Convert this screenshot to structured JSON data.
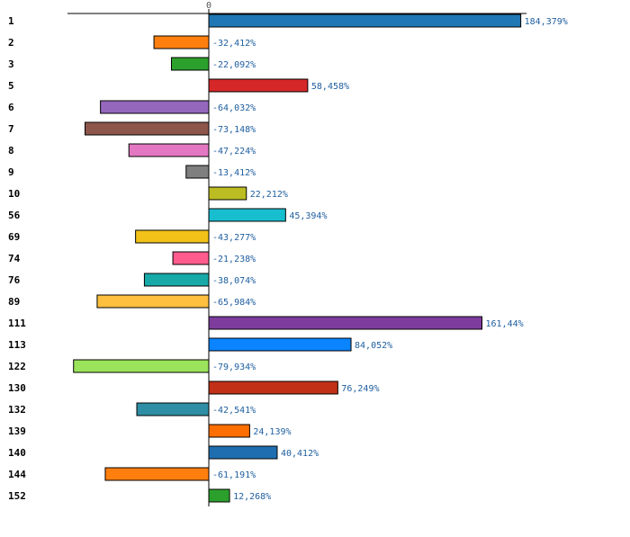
{
  "chart_data": {
    "type": "bar",
    "orientation": "horizontal",
    "title": "",
    "xlabel": "",
    "ylabel": "",
    "zero_tick_label": "0",
    "xlim": [
      -100,
      225
    ],
    "grid": false,
    "legend": "none",
    "categories": [
      "1",
      "2",
      "3",
      "5",
      "6",
      "7",
      "8",
      "9",
      "10",
      "56",
      "69",
      "74",
      "76",
      "89",
      "111",
      "113",
      "122",
      "130",
      "132",
      "139",
      "140",
      "144",
      "152"
    ],
    "values": [
      184.379,
      -32.412,
      -22.092,
      58.458,
      -64.032,
      -73.148,
      -47.224,
      -13.412,
      22.212,
      45.394,
      -43.277,
      -21.238,
      -38.074,
      -65.984,
      161.44,
      84.052,
      -79.934,
      76.249,
      -42.541,
      24.139,
      40.412,
      -61.191,
      12.268
    ],
    "value_labels": [
      "184,379%",
      "-32,412%",
      "-22,092%",
      "58,458%",
      "-64,032%",
      "-73,148%",
      "-47,224%",
      "-13,412%",
      "22,212%",
      "45,394%",
      "-43,277%",
      "-21,238%",
      "-38,074%",
      "-65,984%",
      "161,44%",
      "84,052%",
      "-79,934%",
      "76,249%",
      "-42,541%",
      "24,139%",
      "40,412%",
      "-61,191%",
      "12,268%"
    ],
    "colors": [
      "#1f77b4",
      "#ff7f0e",
      "#2ca02c",
      "#d62728",
      "#9467bd",
      "#8c564b",
      "#e377c2",
      "#7f7f7f",
      "#bcbd22",
      "#17becf",
      "#f2c218",
      "#ff5c8d",
      "#17a8a8",
      "#ffbf3f",
      "#7e3c9d",
      "#0a84ff",
      "#9be35b",
      "#c23018",
      "#2e8ea5",
      "#ff6e00",
      "#1f6fb0",
      "#ff7f0e",
      "#2ca02c"
    ]
  }
}
